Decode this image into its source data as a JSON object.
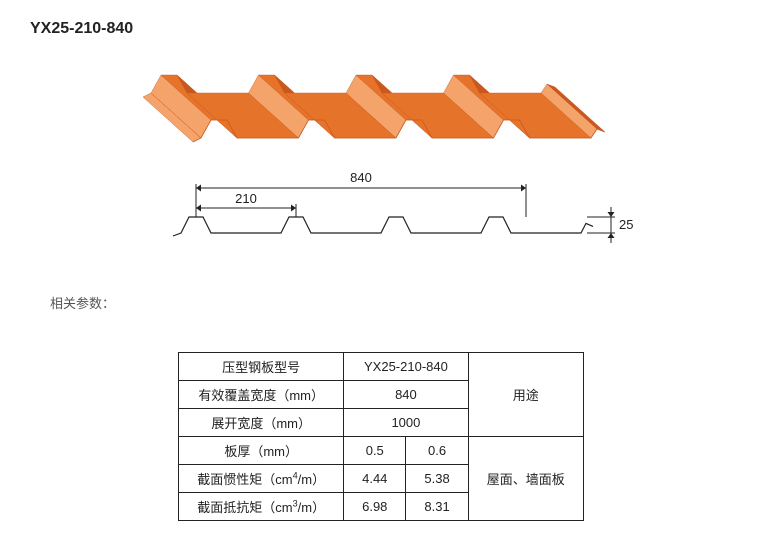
{
  "title": "YX25-210-840",
  "params_label": "相关参数：",
  "diagram": {
    "panel_color": "#e6732a",
    "panel_highlight": "#f4a36a",
    "panel_shadow": "#c9581f",
    "profile_line_color": "#222222",
    "dim_overall": "840",
    "dim_pitch": "210",
    "dim_height": "25",
    "line_width": 1.2,
    "dim_line_width": 1.0,
    "dim_fontsize": 13
  },
  "table": {
    "rows": [
      {
        "label": "压型钢板型号",
        "value": "YX25-210-840"
      },
      {
        "label": "有效覆盖宽度（mm）",
        "value": "840"
      },
      {
        "label": "展开宽度（mm）",
        "value": "1000"
      }
    ],
    "thickness_label": "板厚（mm）",
    "thickness": [
      "0.5",
      "0.6"
    ],
    "inertia_label_pre": "截面惯性矩（cm",
    "inertia_label_sup": "4",
    "inertia_label_post": "/m）",
    "inertia": [
      "4.44",
      "5.38"
    ],
    "section_label_pre": "截面抵抗矩（cm",
    "section_label_sup": "3",
    "section_label_post": "/m）",
    "section": [
      "6.98",
      "8.31"
    ],
    "usage_header": "用途",
    "usage_value": "屋面、墙面板"
  }
}
